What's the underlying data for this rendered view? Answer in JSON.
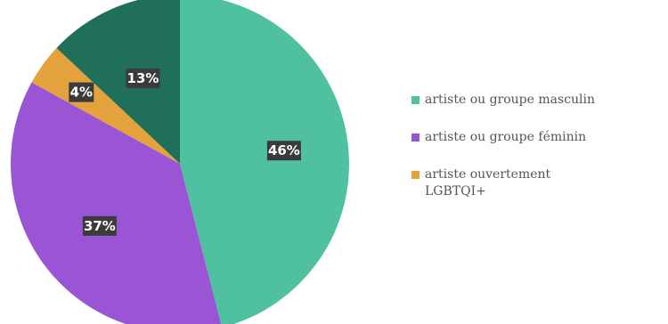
{
  "chart_data": {
    "type": "pie",
    "slices": [
      {
        "name": "artiste ou groupe masculin",
        "value": 46,
        "label": "46%",
        "color": "#4fc1a0",
        "in_legend": true
      },
      {
        "name": "artiste ou groupe féminin",
        "value": 37,
        "label": "37%",
        "color": "#9a55d4",
        "in_legend": true
      },
      {
        "name": "artiste ouvertement LGBTQI+",
        "value": 4,
        "label": "4%",
        "color": "#e3a23b",
        "in_legend": true
      },
      {
        "name": "",
        "value": 13,
        "label": "13%",
        "color": "#1f6f5a",
        "in_legend": false
      }
    ],
    "start_angle_deg": 0,
    "direction": "clockwise",
    "legend_position": "right"
  },
  "legend": {
    "items": [
      {
        "label": "artiste ou groupe masculin",
        "color": "#4fc1a0"
      },
      {
        "label": "artiste ou groupe féminin",
        "color": "#9a55d4"
      },
      {
        "label": "artiste ouvertement\nLGBTQI+",
        "color": "#e3a23b"
      }
    ]
  }
}
